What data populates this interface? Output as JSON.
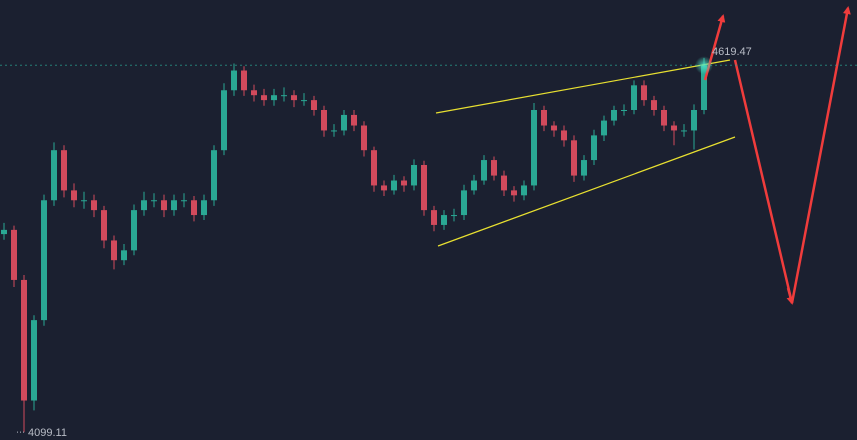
{
  "chart_data": {
    "type": "candlestick",
    "up_color": "#2aa894",
    "down_color": "#d24a5c",
    "ylim": [
      4088,
      4712
    ],
    "last_price": 4619.47,
    "low_price": 4099.11,
    "open": [
      4380,
      4386,
      4315,
      4144,
      4258,
      4428,
      4499,
      4442,
      4428,
      4428,
      4414,
      4371,
      4343,
      4357,
      4414,
      4428,
      4428,
      4414,
      4428,
      4428,
      4407,
      4428,
      4499,
      4584,
      4612,
      4584,
      4577,
      4570,
      4577,
      4577,
      4570,
      4570,
      4556,
      4527,
      4527,
      4549,
      4534,
      4499,
      4449,
      4442,
      4456,
      4449,
      4478,
      4414,
      4393,
      4407,
      4407,
      4442,
      4456,
      4485,
      4463,
      4442,
      4435,
      4449,
      4556,
      4534,
      4527,
      4513,
      4463,
      4485,
      4520,
      4541,
      4556,
      4556,
      4591,
      4570,
      4556,
      4534,
      4527,
      4527,
      4556
    ],
    "high": [
      4396,
      4392,
      4322,
      4265,
      4436,
      4510,
      4506,
      4452,
      4440,
      4436,
      4420,
      4378,
      4366,
      4422,
      4440,
      4438,
      4436,
      4436,
      4438,
      4434,
      4436,
      4506,
      4594,
      4622,
      4618,
      4592,
      4586,
      4586,
      4588,
      4584,
      4580,
      4576,
      4562,
      4536,
      4556,
      4556,
      4540,
      4504,
      4456,
      4464,
      4462,
      4486,
      4484,
      4420,
      4414,
      4416,
      4450,
      4464,
      4492,
      4490,
      4470,
      4448,
      4456,
      4566,
      4562,
      4540,
      4534,
      4520,
      4492,
      4528,
      4548,
      4562,
      4564,
      4598,
      4598,
      4576,
      4562,
      4540,
      4536,
      4564,
      4630
    ],
    "low": [
      4372,
      4305,
      4099,
      4130,
      4250,
      4420,
      4432,
      4418,
      4416,
      4404,
      4360,
      4330,
      4336,
      4350,
      4406,
      4418,
      4404,
      4406,
      4418,
      4398,
      4400,
      4420,
      4492,
      4576,
      4576,
      4568,
      4562,
      4562,
      4568,
      4560,
      4562,
      4548,
      4518,
      4518,
      4520,
      4526,
      4490,
      4440,
      4434,
      4436,
      4440,
      4442,
      4406,
      4384,
      4386,
      4398,
      4400,
      4436,
      4450,
      4456,
      4434,
      4426,
      4428,
      4442,
      4526,
      4518,
      4504,
      4454,
      4456,
      4478,
      4512,
      4534,
      4548,
      4550,
      4562,
      4548,
      4526,
      4506,
      4518,
      4500,
      4550
    ],
    "close": [
      4386,
      4315,
      4144,
      4258,
      4428,
      4499,
      4442,
      4428,
      4428,
      4414,
      4371,
      4343,
      4357,
      4414,
      4428,
      4428,
      4414,
      4428,
      4428,
      4407,
      4428,
      4499,
      4584,
      4612,
      4584,
      4577,
      4570,
      4577,
      4577,
      4570,
      4570,
      4556,
      4527,
      4527,
      4549,
      4534,
      4499,
      4449,
      4442,
      4456,
      4449,
      4478,
      4414,
      4393,
      4407,
      4407,
      4442,
      4456,
      4485,
      4463,
      4442,
      4435,
      4449,
      4556,
      4534,
      4527,
      4513,
      4463,
      4485,
      4520,
      4541,
      4556,
      4556,
      4591,
      4570,
      4556,
      4534,
      4527,
      4527,
      4556,
      4619
    ]
  }
}
